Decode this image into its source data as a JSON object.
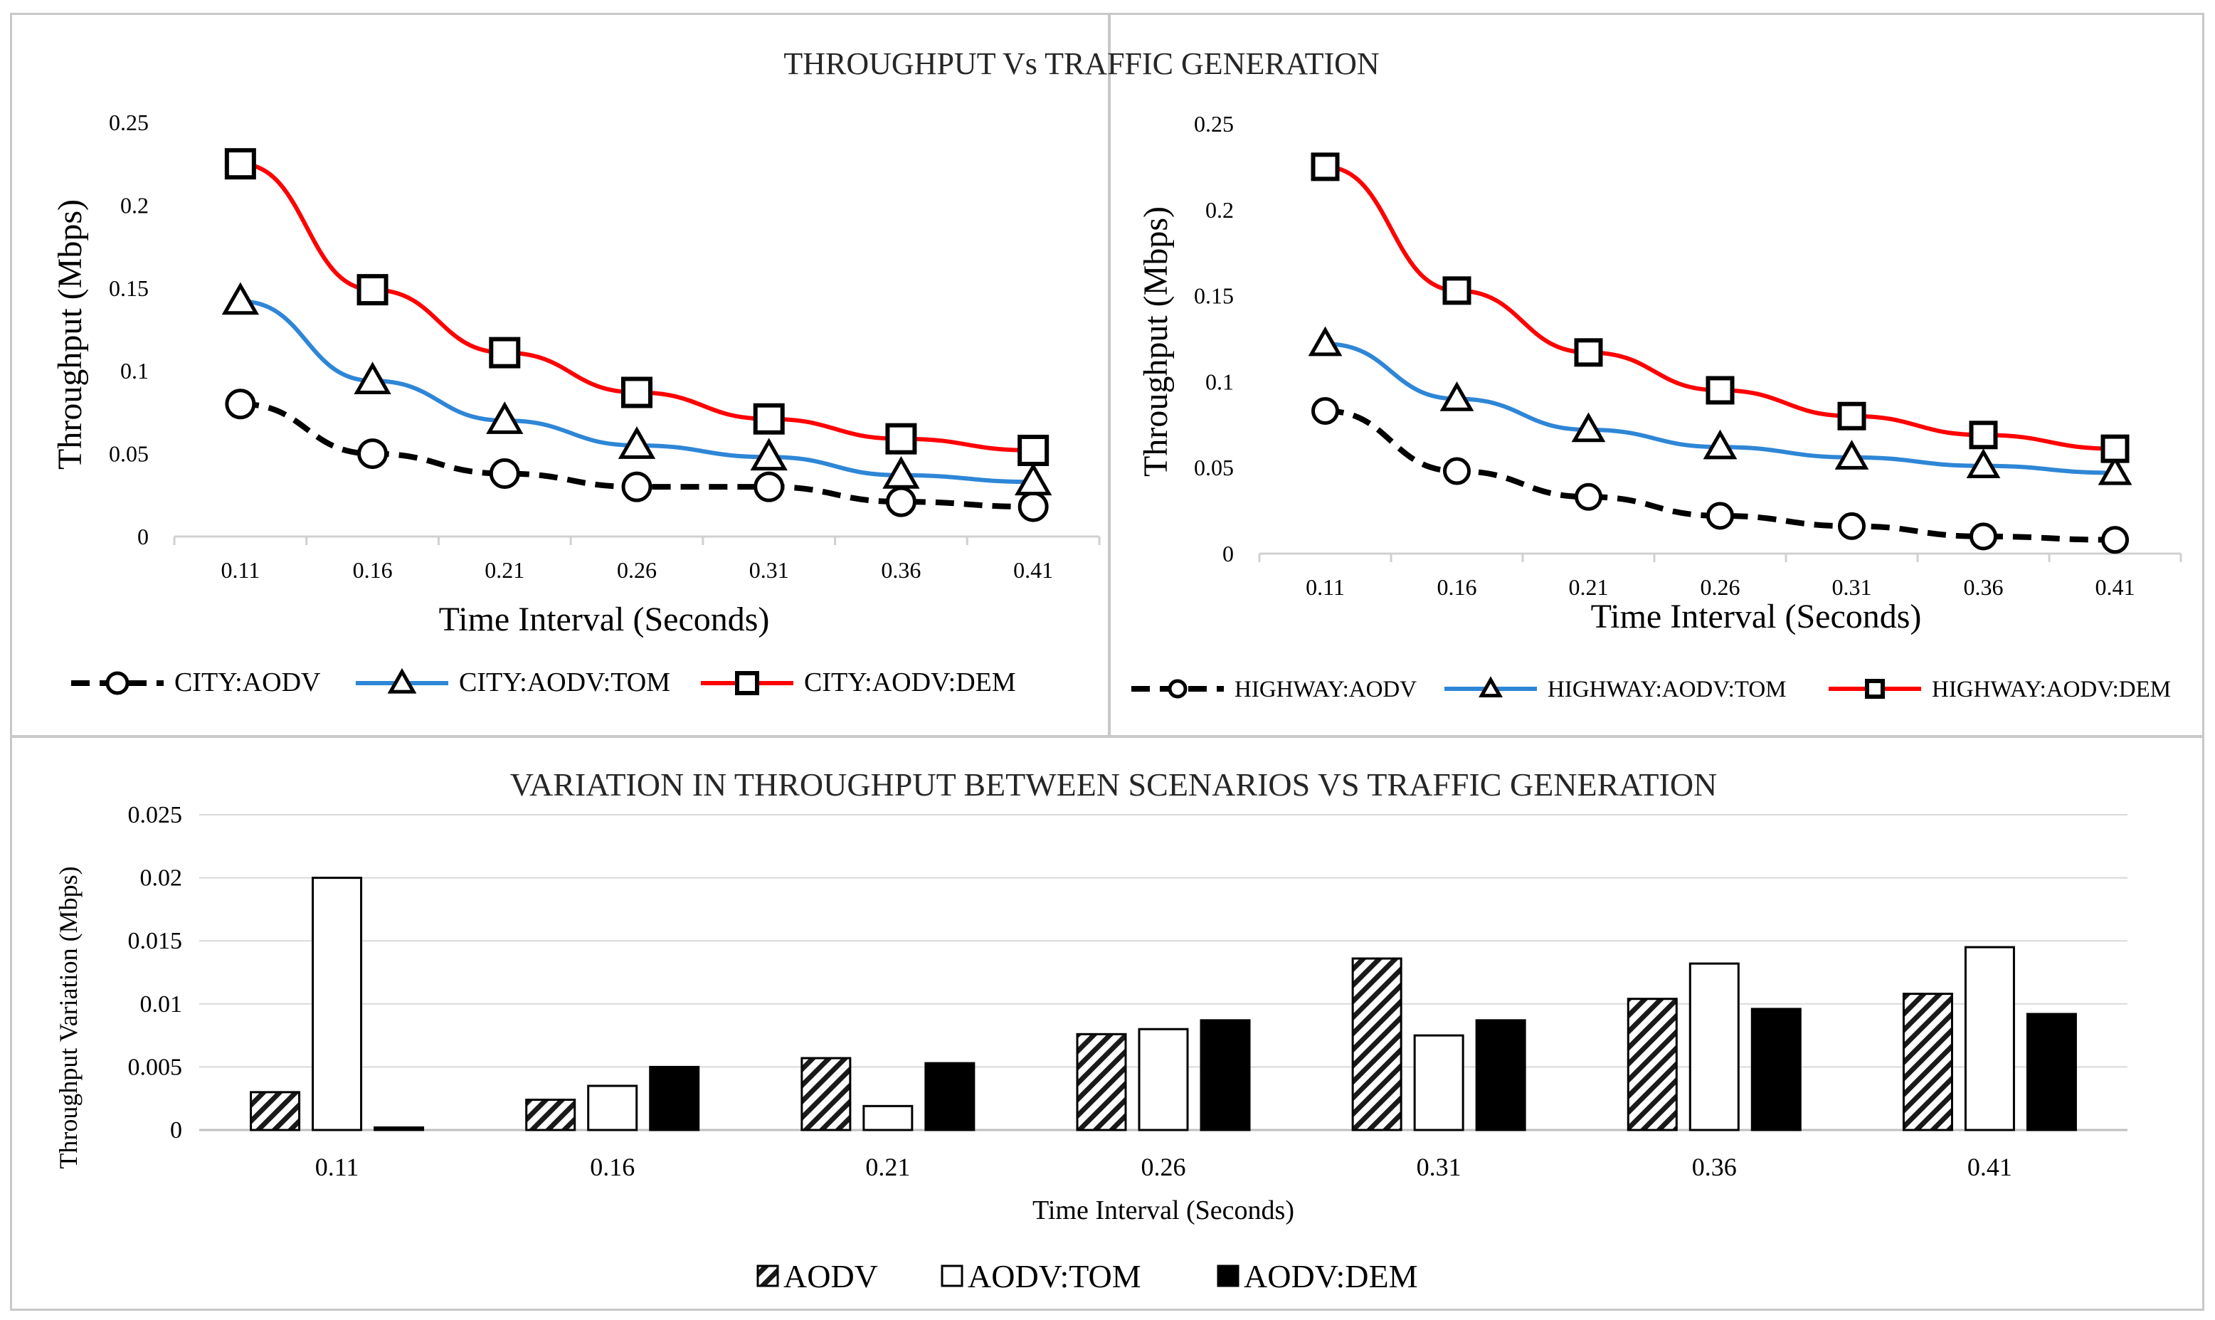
{
  "figure": {
    "top_title": "THROUGHPUT  Vs TRAFFIC GENERATION"
  },
  "chart_data": [
    {
      "type": "line",
      "title": "",
      "xlabel": "Time Interval (Seconds)",
      "ylabel": "Throughput (Mbps)",
      "categories": [
        "0.11",
        "0.16",
        "0.21",
        "0.26",
        "0.31",
        "0.36",
        "0.41"
      ],
      "yticks": [
        "0",
        "0.05",
        "0.1",
        "0.15",
        "0.2",
        "0.25"
      ],
      "ylim": [
        0,
        0.25
      ],
      "grid": false,
      "legend_position": "bottom",
      "series": [
        {
          "name": "CITY:AODV",
          "values": [
            0.08,
            0.05,
            0.038,
            0.03,
            0.03,
            0.021,
            0.018
          ],
          "color": "#000000",
          "dash": true,
          "marker": "circle"
        },
        {
          "name": "CITY:AODV:TOM",
          "values": [
            0.142,
            0.094,
            0.07,
            0.055,
            0.048,
            0.037,
            0.033
          ],
          "color": "#2e86d6",
          "dash": false,
          "marker": "triangle"
        },
        {
          "name": "CITY:AODV:DEM",
          "values": [
            0.225,
            0.149,
            0.111,
            0.087,
            0.071,
            0.059,
            0.052
          ],
          "color": "#ff0000",
          "dash": false,
          "marker": "square"
        }
      ]
    },
    {
      "type": "line",
      "title": "",
      "xlabel": "Time Interval (Seconds)",
      "ylabel": "Throughput (Mbps)",
      "categories": [
        "0.11",
        "0.16",
        "0.21",
        "0.26",
        "0.31",
        "0.36",
        "0.41"
      ],
      "yticks": [
        "0",
        "0.05",
        "0.1",
        "0.15",
        "0.2",
        "0.25"
      ],
      "ylim": [
        0,
        0.25
      ],
      "grid": false,
      "legend_position": "bottom",
      "series": [
        {
          "name": "HIGHWAY:AODV",
          "values": [
            0.083,
            0.048,
            0.033,
            0.022,
            0.016,
            0.01,
            0.008
          ],
          "color": "#000000",
          "dash": true,
          "marker": "circle"
        },
        {
          "name": "HIGHWAY:AODV:TOM",
          "values": [
            0.122,
            0.09,
            0.072,
            0.062,
            0.056,
            0.051,
            0.047
          ],
          "color": "#2e86d6",
          "dash": false,
          "marker": "triangle"
        },
        {
          "name": "HIGHWAY:AODV:DEM",
          "values": [
            0.225,
            0.153,
            0.117,
            0.095,
            0.08,
            0.069,
            0.061
          ],
          "color": "#ff0000",
          "dash": false,
          "marker": "square"
        }
      ]
    },
    {
      "type": "bar",
      "title": "VARIATION IN THROUGHPUT  BETWEEN SCENARIOS VS TRAFFIC GENERATION",
      "xlabel": "Time Interval (Seconds)",
      "ylabel": "Throughput Variation (Mbps)",
      "categories": [
        "0.11",
        "0.16",
        "0.21",
        "0.26",
        "0.31",
        "0.36",
        "0.41"
      ],
      "yticks": [
        "0",
        "0.005",
        "0.01",
        "0.015",
        "0.02",
        "0.025"
      ],
      "ylim": [
        0,
        0.025
      ],
      "grid": true,
      "legend_position": "bottom",
      "series": [
        {
          "name": "AODV",
          "values": [
            0.003,
            0.0024,
            0.0057,
            0.0076,
            0.0136,
            0.0104,
            0.0108
          ],
          "fill": "hatched"
        },
        {
          "name": "AODV:TOM",
          "values": [
            0.02,
            0.0035,
            0.0019,
            0.008,
            0.0075,
            0.0132,
            0.0145
          ],
          "fill": "white"
        },
        {
          "name": "AODV:DEM",
          "values": [
            0.0002,
            0.005,
            0.0053,
            0.0087,
            0.0087,
            0.0096,
            0.0092
          ],
          "fill": "black"
        }
      ]
    }
  ]
}
